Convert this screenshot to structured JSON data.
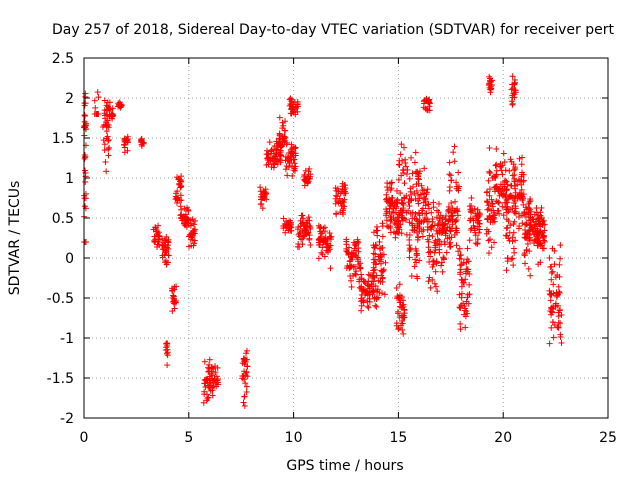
{
  "chart_data": {
    "type": "scatter",
    "title": "Day 257 of 2018, Sidereal Day-to-day VTEC variation (SDTVAR) for receiver pert",
    "xlabel": "GPS time / hours",
    "ylabel": "SDTVAR / TECUs",
    "xlim": [
      0,
      25
    ],
    "ylim": [
      -2,
      2.5
    ],
    "xticks": [
      0,
      5,
      10,
      15,
      20,
      25
    ],
    "yticks": [
      -2,
      -1.5,
      -1,
      -0.5,
      0,
      0.5,
      1,
      1.5,
      2,
      2.5
    ],
    "xtick_labels": [
      "0",
      "5",
      "10",
      "15",
      "20",
      "25"
    ],
    "ytick_labels": [
      "-2",
      "-1.5",
      "-1",
      "-0.5",
      "0",
      "0.5",
      "1",
      "1.5",
      "2",
      "2.5"
    ],
    "grid": true,
    "marker": "+",
    "color": "#ff0000",
    "series": [
      {
        "name": "SDTVAR",
        "segments": [
          [
            0.0,
            0.1,
            0.2,
            2.1,
            1.4
          ],
          [
            0.0,
            0.1,
            0.3,
            0.2,
            0.35
          ],
          [
            0.5,
            0.7,
            1.8,
            2.3,
            1.6
          ],
          [
            0.9,
            1.2,
            1.0,
            2.05,
            1.55
          ],
          [
            1.2,
            1.4,
            1.7,
            2.0,
            1.8
          ],
          [
            1.6,
            1.8,
            1.85,
            1.95,
            1.9
          ],
          [
            1.9,
            2.1,
            1.3,
            1.55,
            1.45
          ],
          [
            2.7,
            2.85,
            1.35,
            1.5,
            1.45
          ],
          [
            3.3,
            3.6,
            0.1,
            0.45,
            0.25
          ],
          [
            3.7,
            4.05,
            -0.1,
            0.35,
            0.15
          ],
          [
            3.9,
            4.0,
            -1.35,
            -1.05,
            -1.1
          ],
          [
            4.2,
            4.4,
            -0.7,
            -0.3,
            -0.5
          ],
          [
            4.35,
            4.65,
            0.6,
            1.1,
            0.85
          ],
          [
            4.6,
            5.0,
            0.35,
            0.65,
            0.5
          ],
          [
            5.0,
            5.3,
            0.05,
            0.6,
            0.3
          ],
          [
            5.7,
            6.0,
            -1.85,
            -1.25,
            -1.55
          ],
          [
            6.0,
            6.4,
            -1.75,
            -1.3,
            -1.55
          ],
          [
            7.55,
            7.8,
            -1.95,
            -1.05,
            -1.45
          ],
          [
            8.4,
            8.7,
            0.6,
            1.05,
            0.8
          ],
          [
            8.7,
            9.4,
            1.1,
            1.5,
            1.3
          ],
          [
            9.3,
            9.6,
            1.35,
            1.8,
            1.5
          ],
          [
            9.5,
            9.9,
            0.3,
            0.5,
            0.4
          ],
          [
            9.6,
            10.1,
            1.0,
            1.5,
            1.25
          ],
          [
            9.8,
            10.2,
            1.75,
            2.05,
            1.9
          ],
          [
            10.2,
            10.8,
            0.1,
            0.6,
            0.35
          ],
          [
            10.5,
            10.8,
            0.9,
            1.2,
            1.0
          ],
          [
            11.2,
            11.8,
            -0.15,
            0.5,
            0.2
          ],
          [
            12.0,
            12.5,
            0.5,
            0.95,
            0.8
          ],
          [
            12.5,
            13.2,
            -0.4,
            0.3,
            0.0
          ],
          [
            13.2,
            14.0,
            -0.7,
            -0.1,
            -0.4
          ],
          [
            13.8,
            14.4,
            -0.6,
            0.5,
            -0.1
          ],
          [
            14.4,
            14.7,
            0.3,
            1.1,
            0.7
          ],
          [
            14.6,
            15.0,
            0.1,
            0.9,
            0.5
          ],
          [
            14.9,
            15.3,
            -1.0,
            -0.3,
            -0.7
          ],
          [
            15.0,
            15.5,
            0.2,
            1.5,
            0.6
          ],
          [
            15.5,
            16.0,
            -0.4,
            1.5,
            0.5
          ],
          [
            15.9,
            16.4,
            0.1,
            1.2,
            0.7
          ],
          [
            16.2,
            16.5,
            1.8,
            2.0,
            1.95
          ],
          [
            16.4,
            16.9,
            -0.5,
            0.8,
            0.2
          ],
          [
            16.9,
            17.5,
            -0.2,
            0.7,
            0.3
          ],
          [
            17.4,
            17.9,
            0.0,
            1.5,
            0.6
          ],
          [
            17.9,
            18.4,
            -1.0,
            0.3,
            -0.3
          ],
          [
            18.4,
            18.9,
            0.1,
            0.8,
            0.5
          ],
          [
            19.2,
            19.6,
            0.0,
            1.5,
            0.6
          ],
          [
            19.3,
            19.5,
            2.0,
            2.3,
            2.15
          ],
          [
            19.6,
            20.2,
            0.4,
            1.4,
            0.9
          ],
          [
            20.1,
            20.6,
            -0.3,
            1.4,
            0.6
          ],
          [
            20.4,
            20.6,
            1.9,
            2.3,
            2.1
          ],
          [
            20.5,
            21.0,
            0.3,
            1.4,
            0.8
          ],
          [
            21.0,
            21.3,
            -0.3,
            0.9,
            0.3
          ],
          [
            21.2,
            21.9,
            0.1,
            0.75,
            0.45
          ],
          [
            21.6,
            22.0,
            -0.1,
            0.6,
            0.25
          ],
          [
            22.2,
            22.8,
            -1.2,
            0.3,
            -0.6
          ]
        ]
      }
    ]
  }
}
